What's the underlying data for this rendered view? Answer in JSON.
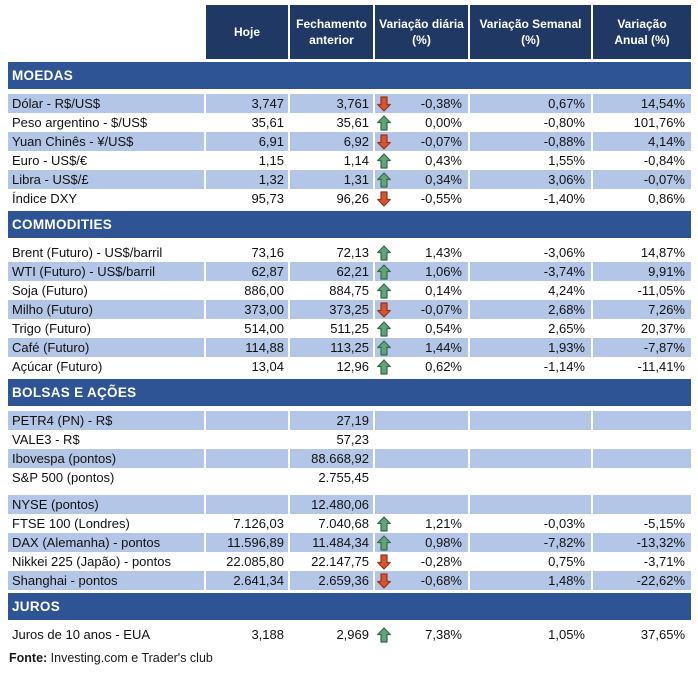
{
  "colors": {
    "header_bg": "#1F3864",
    "section_bg": "#2F5496",
    "stripe_bg": "#B4C6E7",
    "arrow_up_fill": "#63A377",
    "arrow_up_stroke": "#2F6C4B",
    "arrow_down_fill": "#D4552F",
    "arrow_down_stroke": "#96331B"
  },
  "header": {
    "columns": [
      "Hoje",
      "Fechamento\nanterior",
      "Variação diária\n(%)",
      "Variação Semanal\n(%)",
      "Variação\nAnual (%)"
    ]
  },
  "sections": [
    {
      "title": "MOEDAS",
      "rows": [
        {
          "label": "Dólar - R$/US$",
          "hoje": "3,747",
          "fechamento": "3,761",
          "arrow": "down",
          "diaria": "-0,38%",
          "semanal": "0,67%",
          "anual": "14,54%",
          "striped": true
        },
        {
          "label": "Peso argentino - $/US$",
          "hoje": "35,61",
          "fechamento": "35,61",
          "arrow": "up",
          "diaria": "0,00%",
          "semanal": "-0,80%",
          "anual": "101,76%",
          "striped": false
        },
        {
          "label": "Yuan Chinês - ¥/US$",
          "hoje": "6,91",
          "fechamento": "6,92",
          "arrow": "down",
          "diaria": "-0,07%",
          "semanal": "-0,88%",
          "anual": "4,14%",
          "striped": true
        },
        {
          "label": "Euro - US$/€",
          "hoje": "1,15",
          "fechamento": "1,14",
          "arrow": "up",
          "diaria": "0,43%",
          "semanal": "1,55%",
          "anual": "-0,84%",
          "striped": false
        },
        {
          "label": "Libra - US$/£",
          "hoje": "1,32",
          "fechamento": "1,31",
          "arrow": "up",
          "diaria": "0,34%",
          "semanal": "3,06%",
          "anual": "-0,07%",
          "striped": true
        },
        {
          "label": "Índice DXY",
          "hoje": "95,73",
          "fechamento": "96,26",
          "arrow": "down",
          "diaria": "-0,55%",
          "semanal": "-1,40%",
          "anual": "0,86%",
          "striped": false
        }
      ]
    },
    {
      "title": "COMMODITIES",
      "rows": [
        {
          "label": "Brent (Futuro) - US$/barril",
          "hoje": "73,16",
          "fechamento": "72,13",
          "arrow": "up",
          "diaria": "1,43%",
          "semanal": "-3,06%",
          "anual": "14,87%",
          "striped": false
        },
        {
          "label": "WTI (Futuro) - US$/barril",
          "hoje": "62,87",
          "fechamento": "62,21",
          "arrow": "up",
          "diaria": "1,06%",
          "semanal": "-3,74%",
          "anual": "9,91%",
          "striped": true
        },
        {
          "label": "Soja (Futuro)",
          "hoje": "886,00",
          "fechamento": "884,75",
          "arrow": "up",
          "diaria": "0,14%",
          "semanal": "4,24%",
          "anual": "-11,05%",
          "striped": false
        },
        {
          "label": "Milho (Futuro)",
          "hoje": "373,00",
          "fechamento": "373,25",
          "arrow": "down",
          "diaria": "-0,07%",
          "semanal": "2,68%",
          "anual": "7,26%",
          "striped": true
        },
        {
          "label": "Trigo (Futuro)",
          "hoje": "514,00",
          "fechamento": "511,25",
          "arrow": "up",
          "diaria": "0,54%",
          "semanal": "2,65%",
          "anual": "20,37%",
          "striped": false
        },
        {
          "label": "Café (Futuro)",
          "hoje": "114,88",
          "fechamento": "113,25",
          "arrow": "up",
          "diaria": "1,44%",
          "semanal": "1,93%",
          "anual": "-7,87%",
          "striped": true
        },
        {
          "label": "Açúcar (Futuro)",
          "hoje": "13,04",
          "fechamento": "12,96",
          "arrow": "up",
          "diaria": "0,62%",
          "semanal": "-1,14%",
          "anual": "-11,41%",
          "striped": false
        }
      ]
    },
    {
      "title": "BOLSAS E AÇÕES",
      "rows": [
        {
          "label": "PETR4 (PN) - R$",
          "hoje": "",
          "fechamento": "27,19",
          "arrow": null,
          "diaria": "",
          "semanal": "",
          "anual": "",
          "striped": true
        },
        {
          "label": "VALE3 - R$",
          "hoje": "",
          "fechamento": "57,23",
          "arrow": null,
          "diaria": "",
          "semanal": "",
          "anual": "",
          "striped": false
        },
        {
          "label": "Ibovespa (pontos)",
          "hoje": "",
          "fechamento": "88.668,92",
          "arrow": null,
          "diaria": "",
          "semanal": "",
          "anual": "",
          "striped": true
        },
        {
          "label": "S&P 500 (pontos)",
          "hoje": "",
          "fechamento": "2.755,45",
          "arrow": null,
          "diaria": "",
          "semanal": "",
          "anual": "",
          "striped": false
        },
        {
          "label": "NYSE (pontos)",
          "hoje": "",
          "fechamento": "12.480,06",
          "arrow": null,
          "diaria": "",
          "semanal": "",
          "anual": "",
          "striped": true,
          "spacer_before": true
        },
        {
          "label": "FTSE 100 (Londres)",
          "hoje": "7.126,03",
          "fechamento": "7.040,68",
          "arrow": "up",
          "diaria": "1,21%",
          "semanal": "-0,03%",
          "anual": "-5,15%",
          "striped": false
        },
        {
          "label": "DAX (Alemanha) - pontos",
          "hoje": "11.596,89",
          "fechamento": "11.484,34",
          "arrow": "up",
          "diaria": "0,98%",
          "semanal": "-7,82%",
          "anual": "-13,32%",
          "striped": true
        },
        {
          "label": "Nikkei 225 (Japão) - pontos",
          "hoje": "22.085,80",
          "fechamento": "22.147,75",
          "arrow": "down",
          "diaria": "-0,28%",
          "semanal": "0,75%",
          "anual": "-3,71%",
          "striped": false
        },
        {
          "label": "Shanghai - pontos",
          "hoje": "2.641,34",
          "fechamento": "2.659,36",
          "arrow": "down",
          "diaria": "-0,68%",
          "semanal": "1,48%",
          "anual": "-22,62%",
          "striped": true
        }
      ]
    },
    {
      "title": "JUROS",
      "rows": [
        {
          "label": "Juros de 10 anos - EUA",
          "hoje": "3,188",
          "fechamento": "2,969",
          "arrow": "up",
          "diaria": "7,38%",
          "semanal": "1,05%",
          "anual": "37,65%",
          "striped": false
        }
      ]
    }
  ],
  "footer": {
    "label": "Fonte:",
    "text": " Investing.com e Trader's club"
  }
}
